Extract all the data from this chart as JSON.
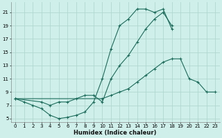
{
  "xlabel": "Humidex (Indice chaleur)",
  "bg_color": "#cff0ea",
  "grid_color": "#b0d8d0",
  "line_color": "#1a6b5a",
  "xlim": [
    -0.5,
    23.5
  ],
  "ylim": [
    4.5,
    22.5
  ],
  "xticks": [
    0,
    1,
    2,
    3,
    4,
    5,
    6,
    7,
    8,
    9,
    10,
    11,
    12,
    13,
    14,
    15,
    16,
    17,
    18,
    19,
    20,
    21,
    22,
    23
  ],
  "yticks": [
    5,
    7,
    9,
    11,
    13,
    15,
    17,
    19,
    21
  ],
  "curve1_x": [
    0,
    1,
    2,
    3,
    4,
    5,
    6,
    7,
    8,
    9,
    10,
    11,
    12,
    13,
    14,
    15,
    16,
    17,
    18
  ],
  "curve1_y": [
    8.0,
    7.5,
    7.0,
    6.5,
    5.5,
    5.0,
    5.2,
    5.5,
    6.0,
    7.5,
    11.0,
    15.5,
    19.0,
    20.0,
    21.5,
    21.5,
    21.0,
    21.5,
    18.5
  ],
  "curve2_x": [
    0,
    3,
    4,
    5,
    6,
    7,
    8,
    9,
    10,
    11,
    12,
    13,
    14,
    15,
    16,
    17,
    18
  ],
  "curve2_y": [
    8.0,
    7.5,
    7.0,
    7.5,
    7.5,
    8.0,
    8.5,
    8.5,
    7.5,
    11.0,
    13.0,
    14.5,
    16.5,
    18.5,
    20.0,
    21.0,
    19.0
  ],
  "curve3_x": [
    0,
    10,
    11,
    12,
    13,
    14,
    15,
    16,
    17,
    18,
    19,
    20,
    21,
    22,
    23
  ],
  "curve3_y": [
    8.0,
    8.0,
    8.5,
    9.0,
    9.5,
    10.5,
    11.5,
    12.5,
    13.5,
    14.0,
    14.0,
    11.0,
    10.5,
    9.0,
    9.0
  ],
  "xlabel_fontsize": 6.0,
  "tick_fontsize": 5.0
}
